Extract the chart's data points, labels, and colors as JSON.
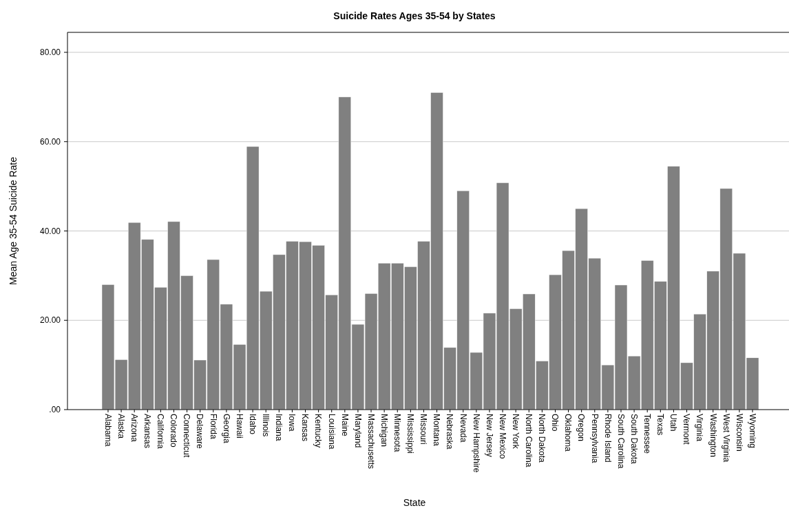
{
  "chart_data": {
    "type": "bar",
    "title": "Suicide Rates Ages 35-54 by States",
    "xlabel": "State",
    "ylabel": "Mean Age 35-54 Suicide Rate",
    "categories": [
      "Alabama",
      "Alaska",
      "Arizona",
      "Arkansas",
      "California",
      "Colorado",
      "Connecticut",
      "Delaware",
      "Florida",
      "Georgia",
      "Hawaii",
      "Idaho",
      "Illinois",
      "Indiana",
      "Iowa",
      "Kansas",
      "Kentucky",
      "Louisiana",
      "Maine",
      "Maryland",
      "Massachusetts",
      "Michigan",
      "Minnesota",
      "Mississippi",
      "Missouri",
      "Montana",
      "Nebraska",
      "Nevada",
      "New Hampshire",
      "New Jersey",
      "New Mexico",
      "New York",
      "North Carolina",
      "North Dakota",
      "Ohio",
      "Oklahoma",
      "Oregon",
      "Pennsylvania",
      "Rhode Island",
      "South Carolina",
      "South Dakota",
      "Tennessee",
      "Texas",
      "Utah",
      "Vermont",
      "Virginia",
      "Washington",
      "West Virginia",
      "Wisconsin",
      "Wyoming"
    ],
    "values": [
      28.0,
      11.2,
      41.9,
      38.1,
      27.4,
      42.1,
      30.0,
      11.1,
      33.6,
      23.6,
      14.6,
      58.9,
      26.5,
      34.7,
      37.7,
      37.6,
      36.8,
      25.7,
      70.0,
      19.1,
      26.0,
      32.8,
      32.8,
      32.0,
      37.7,
      71.0,
      13.9,
      49.0,
      12.8,
      21.6,
      50.8,
      22.6,
      25.9,
      10.9,
      30.2,
      35.6,
      45.0,
      33.9,
      10.0,
      27.9,
      12.0,
      33.4,
      28.7,
      54.5,
      10.5,
      21.4,
      31.0,
      49.5,
      35.0,
      11.6
    ],
    "color": "#808080",
    "ylim": [
      0,
      80
    ],
    "yticks": [
      {
        "value": 0,
        "label": ".00"
      },
      {
        "value": 20,
        "label": "20.00"
      },
      {
        "value": 40,
        "label": "40.00"
      },
      {
        "value": 60,
        "label": "60.00"
      },
      {
        "value": 80,
        "label": "80.00"
      }
    ],
    "grid": "y"
  }
}
